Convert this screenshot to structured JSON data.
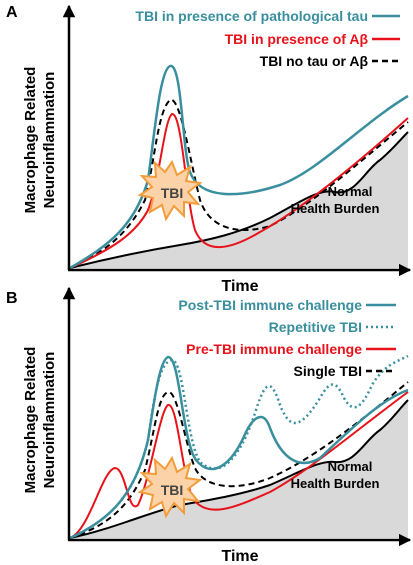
{
  "colors": {
    "teal": "#3a8f9e",
    "red": "#e8121a",
    "black": "#000000",
    "gray_fill": "#d9d9d9",
    "burst_fill": "#fcd3a8",
    "burst_stroke": "#f39c3a"
  },
  "panels": [
    {
      "letter": "A",
      "ylabel_line1": "Macrophage Related",
      "ylabel_line2": "Neuroinflammation",
      "xlabel": "Time",
      "burst_label": "TBI",
      "area_label_line1": "Normal",
      "area_label_line2": "Health Burden",
      "legend": [
        {
          "label": "TBI in presence of pathological tau",
          "color": "#3a8f9e",
          "style": "solid"
        },
        {
          "label": "TBI in presence of Aβ",
          "color": "#e8121a",
          "style": "solid"
        },
        {
          "label": "TBI no tau or Aβ",
          "color": "#000000",
          "style": "dashed"
        }
      ]
    },
    {
      "letter": "B",
      "ylabel_line1": "Macrophage Related",
      "ylabel_line2": "Neuroinflammation",
      "xlabel": "Time",
      "burst_label": "TBI",
      "area_label_line1": "Normal",
      "area_label_line2": "Health Burden",
      "legend": [
        {
          "label": "Post-TBI immune challenge",
          "color": "#3a8f9e",
          "style": "solid"
        },
        {
          "label": "Repetitive TBI",
          "color": "#3a8f9e",
          "style": "dotted"
        },
        {
          "label": "Pre-TBI immune challenge",
          "color": "#e8121a",
          "style": "solid"
        },
        {
          "label": "Single TBI",
          "color": "#000000",
          "style": "dashed"
        }
      ]
    }
  ]
}
